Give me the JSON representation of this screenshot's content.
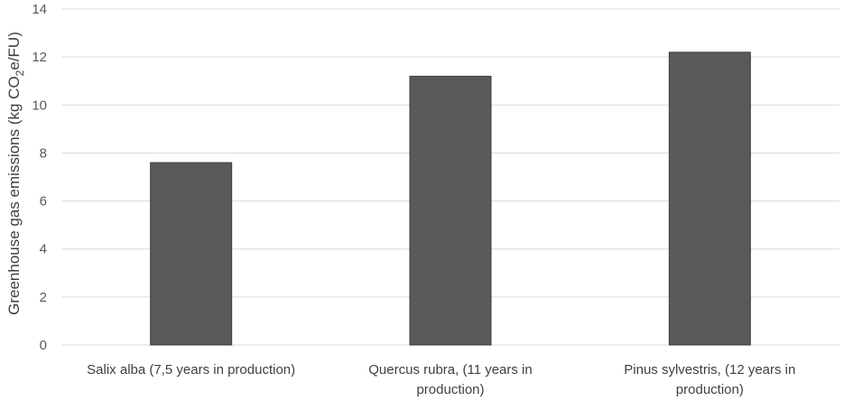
{
  "chart_data": {
    "type": "bar",
    "title": "",
    "xlabel": "",
    "ylabel": "Greenhouse gas emissions (kg CO2e/FU)",
    "ylabel_parts": {
      "pre": "Greenhouse gas emissions (kg CO",
      "sub": "2",
      "post": "e/FU)"
    },
    "categories": [
      [
        "Salix alba (7,5 years in production)"
      ],
      [
        "Quercus rubra, (11 years in",
        "production)"
      ],
      [
        "Pinus sylvestris, (12 years in",
        "production)"
      ]
    ],
    "values": [
      7.6,
      11.2,
      12.2
    ],
    "ylim": [
      0,
      14
    ],
    "yticks": [
      0,
      2,
      4,
      6,
      8,
      10,
      12,
      14
    ],
    "grid": true,
    "bar_color": "#595959",
    "bar_edge_color": "#404040",
    "grid_color": "#d9d9d9"
  }
}
